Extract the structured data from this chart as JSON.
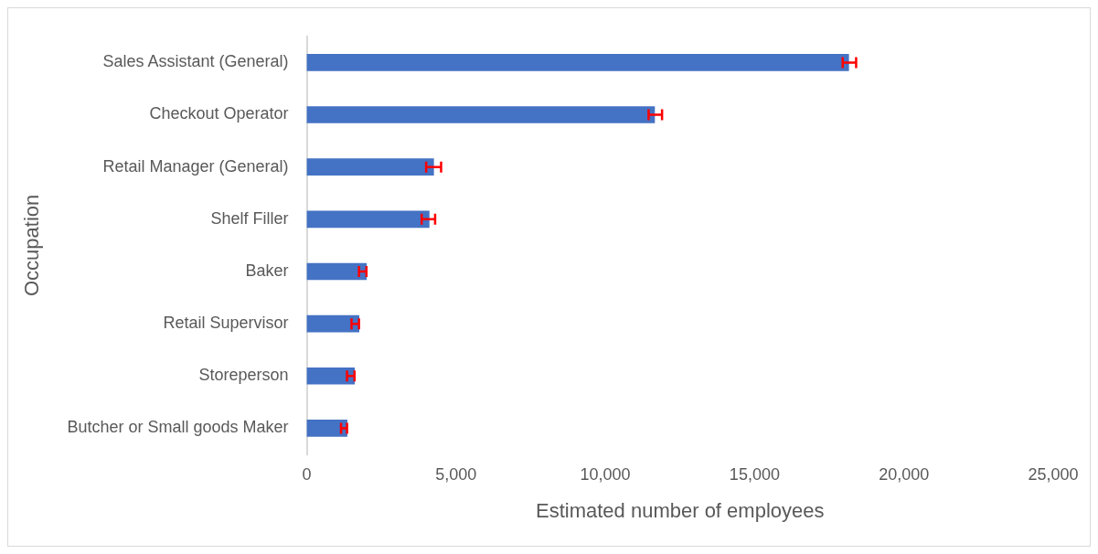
{
  "chart_data": {
    "type": "bar",
    "orientation": "horizontal",
    "xlabel": "Estimated number of employees",
    "ylabel": "Occupation",
    "categories": [
      "Sales Assistant (General)",
      "Checkout Operator",
      "Retail Manager (General)",
      "Shelf Filler",
      "Baker",
      "Retail Supervisor",
      "Storeperson",
      "Butcher or Small goods Maker"
    ],
    "values": [
      18150,
      11650,
      4250,
      4100,
      2000,
      1750,
      1600,
      1350
    ],
    "errors": [
      [
        17950,
        18400
      ],
      [
        11450,
        11900
      ],
      [
        4000,
        4500
      ],
      [
        3850,
        4300
      ],
      [
        1750,
        2000
      ],
      [
        1500,
        1750
      ],
      [
        1350,
        1600
      ],
      [
        1150,
        1350
      ]
    ],
    "color": "#4472c4",
    "xlim": [
      0,
      25000
    ],
    "xticks": [
      0,
      {
        "value": 5000,
        "label": "5,000"
      },
      {
        "value": 10000,
        "label": "10,000"
      },
      {
        "value": 15000,
        "label": "15,000"
      },
      {
        "value": 20000,
        "label": "20,000"
      },
      {
        "value": 25000,
        "label": "25,000"
      }
    ],
    "grid": false,
    "legend": false
  }
}
